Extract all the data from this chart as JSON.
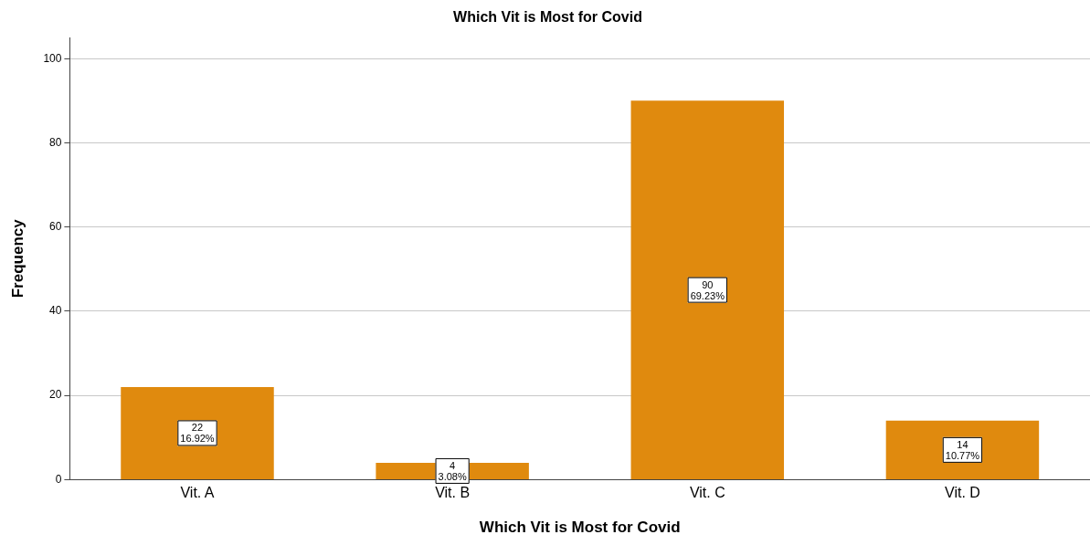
{
  "chart_data": {
    "type": "bar",
    "title": "Which Vit is Most for Covid",
    "xlabel": "Which Vit is Most for Covid",
    "ylabel": "Frequency",
    "categories": [
      "Vit. A",
      "Vit. B",
      "Vit. C",
      "Vit. D"
    ],
    "values": [
      22,
      4,
      90,
      14
    ],
    "value_labels": [
      "22\n16.92%",
      "4\n3.08%",
      "90\n69.23%",
      "14\n10.77%"
    ],
    "color": "#e08a0e",
    "ylim": [
      0,
      105
    ],
    "yticks": [
      0,
      20,
      40,
      60,
      80,
      100
    ],
    "grid": "y",
    "legend": false
  }
}
